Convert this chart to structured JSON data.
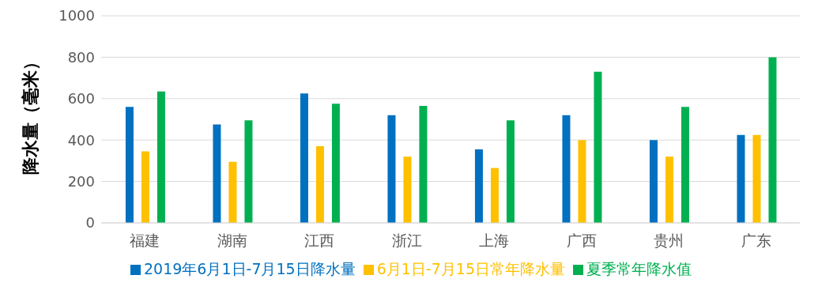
{
  "chart_data": {
    "type": "bar",
    "ylabel": "降水量（毫米）",
    "categories": [
      "福建",
      "湖南",
      "江西",
      "浙江",
      "上海",
      "广西",
      "贵州",
      "广东"
    ],
    "series": [
      {
        "name": "2019年6月1日-7月15日降水量",
        "color": "#0070c0",
        "values": [
          560,
          475,
          625,
          520,
          355,
          520,
          400,
          425
        ]
      },
      {
        "name": "6月1日-7月15日常年降水量",
        "color": "#ffc000",
        "values": [
          345,
          295,
          370,
          320,
          265,
          400,
          320,
          425
        ]
      },
      {
        "name": "夏季常年降水值",
        "color": "#00b050",
        "values": [
          635,
          495,
          575,
          565,
          495,
          730,
          560,
          800
        ]
      }
    ],
    "ylim": [
      0,
      1000
    ],
    "yticks": [
      0,
      200,
      400,
      600,
      800,
      1000
    ],
    "grid": "y",
    "legend": "bottom"
  }
}
